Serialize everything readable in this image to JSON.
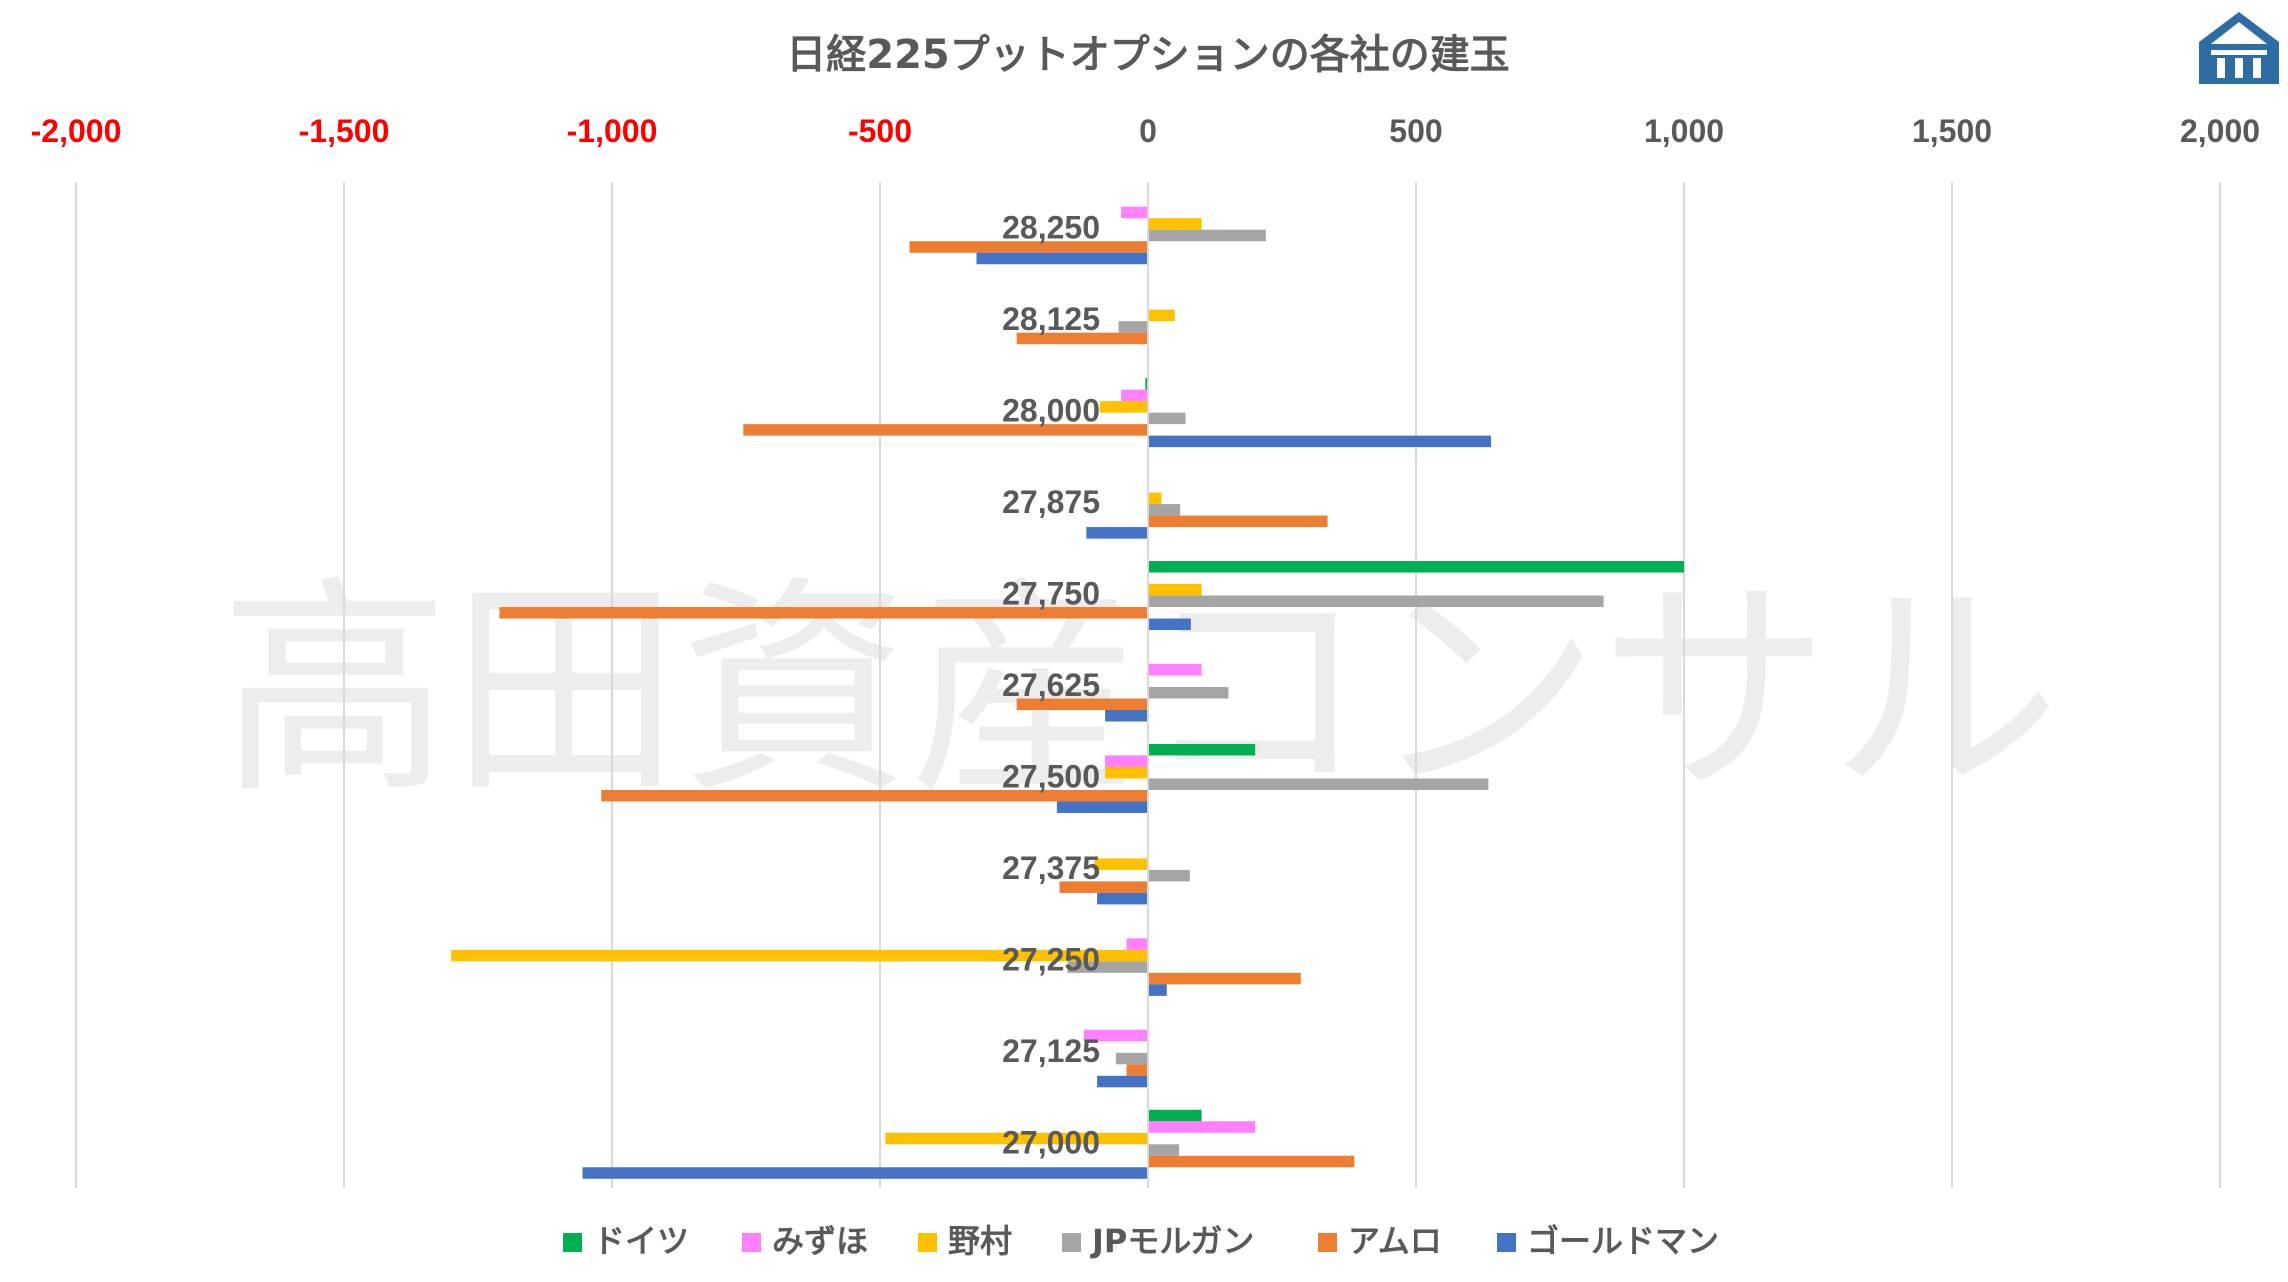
{
  "watermark": "高田資産コンサル",
  "logo": {
    "icon": "building-logo-icon",
    "color": "#2e6da4"
  },
  "chart_data": {
    "type": "bar",
    "orientation": "horizontal",
    "title": "日経225プットオプションの各社の建玉",
    "xlabel": "",
    "ylabel": "",
    "xlim": [
      -2000,
      2000
    ],
    "xticks": [
      -2000,
      -1500,
      -1000,
      -500,
      0,
      500,
      1000,
      1500,
      2000
    ],
    "xtick_labels": [
      "-2,000",
      "-1,500",
      "-1,000",
      "-500",
      "0",
      "500",
      "1,000",
      "1,500",
      "2,000"
    ],
    "negative_tick_color": "#ff0000",
    "positive_tick_color": "#595959",
    "grid": "vertical",
    "legend_position": "bottom",
    "categories": [
      "28,250",
      "28,125",
      "28,000",
      "27,875",
      "27,750",
      "27,625",
      "27,500",
      "27,375",
      "27,250",
      "27,125",
      "27,000"
    ],
    "series": [
      {
        "name": "ドイツ",
        "color": "#00b050",
        "values": [
          0,
          0,
          -5,
          0,
          1000,
          0,
          200,
          0,
          0,
          0,
          100
        ]
      },
      {
        "name": "みずほ",
        "color": "#ff80ff",
        "values": [
          -50,
          0,
          -50,
          0,
          0,
          100,
          -80,
          0,
          -40,
          -120,
          200
        ]
      },
      {
        "name": "野村",
        "color": "#ffc000",
        "values": [
          100,
          50,
          -90,
          25,
          100,
          0,
          -80,
          -100,
          -1300,
          0,
          -490
        ]
      },
      {
        "name": "JPモルガン",
        "color": "#a5a5a5",
        "values": [
          220,
          -55,
          70,
          60,
          850,
          150,
          635,
          78,
          -150,
          -60,
          58
        ]
      },
      {
        "name": "アムロ",
        "color": "#ed7d31",
        "values": [
          -445,
          -245,
          -755,
          335,
          -1210,
          -245,
          -1020,
          -165,
          285,
          -40,
          385
        ]
      },
      {
        "name": "ゴールドマン",
        "color": "#4472c4",
        "values": [
          -320,
          0,
          640,
          -115,
          80,
          -80,
          -170,
          -95,
          35,
          -95,
          -1055
        ]
      }
    ]
  }
}
